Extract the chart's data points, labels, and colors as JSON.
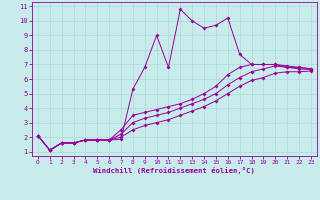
{
  "xlabel": "Windchill (Refroidissement éolien,°C)",
  "background_color": "#c8ecec",
  "grid_color": "#b0d8d8",
  "line_color": "#990099",
  "xlim": [
    -0.5,
    23.5
  ],
  "ylim": [
    0.7,
    11.3
  ],
  "xticks": [
    0,
    1,
    2,
    3,
    4,
    5,
    6,
    7,
    8,
    9,
    10,
    11,
    12,
    13,
    14,
    15,
    16,
    17,
    18,
    19,
    20,
    21,
    22,
    23
  ],
  "yticks": [
    1,
    2,
    3,
    4,
    5,
    6,
    7,
    8,
    9,
    10,
    11
  ],
  "curves": {
    "spiky": {
      "x": [
        0,
        1,
        2,
        3,
        4,
        5,
        6,
        7,
        8,
        9,
        10,
        11,
        12,
        13,
        14,
        15,
        16,
        17,
        18,
        19,
        20,
        21,
        22,
        23
      ],
      "y": [
        2.1,
        1.1,
        1.6,
        1.6,
        1.8,
        1.8,
        1.8,
        1.85,
        5.3,
        6.8,
        9.0,
        6.8,
        10.8,
        10.0,
        9.5,
        9.7,
        10.2,
        7.7,
        7.0,
        7.0,
        7.0,
        6.8,
        6.8,
        6.7
      ]
    },
    "upper": {
      "x": [
        0,
        1,
        2,
        3,
        4,
        5,
        6,
        7,
        8,
        9,
        10,
        11,
        12,
        13,
        14,
        15,
        16,
        17,
        18,
        19,
        20,
        21,
        22,
        23
      ],
      "y": [
        2.1,
        1.1,
        1.6,
        1.6,
        1.8,
        1.8,
        1.8,
        2.5,
        3.5,
        3.7,
        3.9,
        4.1,
        4.3,
        4.6,
        5.0,
        5.5,
        6.3,
        6.8,
        7.0,
        7.0,
        7.0,
        6.9,
        6.8,
        6.7
      ]
    },
    "middle": {
      "x": [
        0,
        1,
        2,
        3,
        4,
        5,
        6,
        7,
        8,
        9,
        10,
        11,
        12,
        13,
        14,
        15,
        16,
        17,
        18,
        19,
        20,
        21,
        22,
        23
      ],
      "y": [
        2.1,
        1.1,
        1.6,
        1.6,
        1.8,
        1.8,
        1.8,
        2.2,
        3.0,
        3.3,
        3.5,
        3.7,
        4.0,
        4.3,
        4.6,
        5.0,
        5.6,
        6.1,
        6.5,
        6.7,
        6.9,
        6.8,
        6.7,
        6.65
      ]
    },
    "bottom": {
      "x": [
        0,
        1,
        2,
        3,
        4,
        5,
        6,
        7,
        8,
        9,
        10,
        11,
        12,
        13,
        14,
        15,
        16,
        17,
        18,
        19,
        20,
        21,
        22,
        23
      ],
      "y": [
        2.1,
        1.1,
        1.6,
        1.6,
        1.8,
        1.8,
        1.8,
        2.0,
        2.5,
        2.8,
        3.0,
        3.2,
        3.5,
        3.8,
        4.1,
        4.5,
        5.0,
        5.5,
        5.9,
        6.1,
        6.4,
        6.5,
        6.5,
        6.55
      ]
    }
  }
}
